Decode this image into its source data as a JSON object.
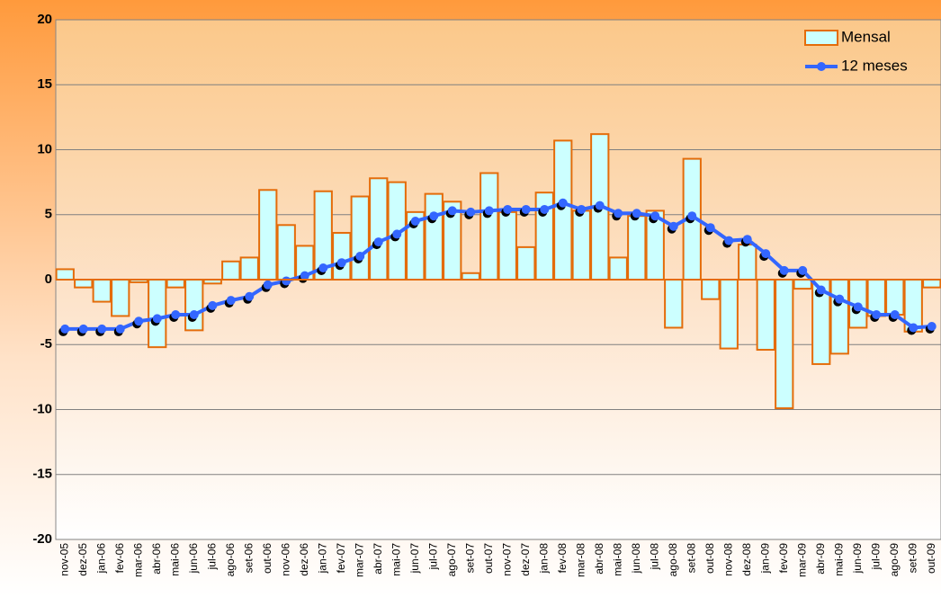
{
  "chart_data": {
    "type": "bar-line",
    "categories": [
      "nov-05",
      "dez-05",
      "jan-06",
      "fev-06",
      "mar-06",
      "abr-06",
      "mai-06",
      "jun-06",
      "jul-06",
      "ago-06",
      "set-06",
      "out-06",
      "nov-06",
      "dez-06",
      "jan-07",
      "fev-07",
      "mar-07",
      "abr-07",
      "mai-07",
      "jun-07",
      "jul-07",
      "ago-07",
      "set-07",
      "out-07",
      "nov-07",
      "dez-07",
      "jan-08",
      "fev-08",
      "mar-08",
      "abr-08",
      "mai-08",
      "jun-08",
      "jul-08",
      "ago-08",
      "set-08",
      "out-08",
      "nov-08",
      "dez-08",
      "jan-09",
      "fev-09",
      "mar-09",
      "abr-09",
      "mai-09",
      "jun-09",
      "jul-09",
      "ago-09",
      "set-09",
      "out-09"
    ],
    "series": [
      {
        "name": "Mensal",
        "type": "bar",
        "color": "#e46c0a",
        "fill": "#ccffff",
        "values": [
          0.8,
          -0.6,
          -1.7,
          -2.8,
          -0.2,
          -5.2,
          -0.6,
          -3.9,
          -0.3,
          1.4,
          1.7,
          6.9,
          4.2,
          2.6,
          6.8,
          3.6,
          6.4,
          7.8,
          7.5,
          5.2,
          6.6,
          6.0,
          0.5,
          8.2,
          5.2,
          2.5,
          6.7,
          10.7,
          5.3,
          11.2,
          1.7,
          4.9,
          5.3,
          -3.7,
          9.3,
          -1.5,
          -5.3,
          2.7,
          -5.4,
          -9.9,
          -0.7,
          -6.5,
          -5.7,
          -3.7,
          -2.8,
          -2.7,
          -4.0,
          -0.6
        ]
      },
      {
        "name": "12 meses",
        "type": "line",
        "color": "#3366ff",
        "values": [
          -3.8,
          -3.8,
          -3.8,
          -3.8,
          -3.2,
          -3.0,
          -2.7,
          -2.7,
          -2.0,
          -1.6,
          -1.3,
          -0.4,
          -0.1,
          0.3,
          0.9,
          1.3,
          1.8,
          2.9,
          3.5,
          4.5,
          4.9,
          5.3,
          5.2,
          5.3,
          5.4,
          5.4,
          5.4,
          5.9,
          5.4,
          5.7,
          5.1,
          5.1,
          4.9,
          4.1,
          4.9,
          4.0,
          3.0,
          3.1,
          2.0,
          0.7,
          0.7,
          -0.8,
          -1.5,
          -2.1,
          -2.7,
          -2.7,
          -3.7,
          -3.6
        ]
      }
    ],
    "ylim": [
      -20,
      20
    ],
    "yticks": [
      -20,
      -15,
      -10,
      -5,
      0,
      5,
      10,
      15,
      20
    ],
    "grid": true,
    "legend": "top-right"
  }
}
